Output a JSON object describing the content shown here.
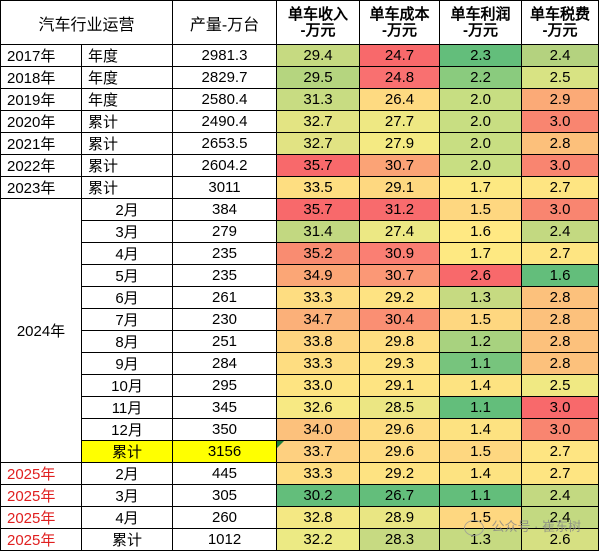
{
  "headers": {
    "c0": "汽车行业运营",
    "c2": "产量-万台",
    "c3": "单车收入\n-万元",
    "c4": "单车成本\n-万元",
    "c5": "单车利润\n-万元",
    "c6": "单车税费\n-万元"
  },
  "rows": [
    {
      "year": "2017年",
      "period": "年度",
      "output": "2981.3",
      "rev": "29.4",
      "cost": "24.7",
      "profit": "2.3",
      "tax": "2.4"
    },
    {
      "year": "2018年",
      "period": "年度",
      "output": "2829.7",
      "rev": "29.5",
      "cost": "24.8",
      "profit": "2.2",
      "tax": "2.5"
    },
    {
      "year": "2019年",
      "period": "年度",
      "output": "2580.4",
      "rev": "31.3",
      "cost": "26.4",
      "profit": "2.0",
      "tax": "2.9"
    },
    {
      "year": "2020年",
      "period": "累计",
      "output": "2490.4",
      "rev": "32.7",
      "cost": "27.7",
      "profit": "2.0",
      "tax": "3.0"
    },
    {
      "year": "2021年",
      "period": "累计",
      "output": "2653.5",
      "rev": "32.7",
      "cost": "27.9",
      "profit": "2.0",
      "tax": "2.8"
    },
    {
      "year": "2022年",
      "period": "累计",
      "output": "2604.2",
      "rev": "35.7",
      "cost": "30.7",
      "profit": "2.0",
      "tax": "3.0"
    },
    {
      "year": "2023年",
      "period": "累计",
      "output": "3011",
      "rev": "33.5",
      "cost": "29.1",
      "profit": "1.7",
      "tax": "2.7"
    },
    {
      "year": "2024年",
      "period": "2月",
      "output": "384",
      "rev": "35.7",
      "cost": "31.2",
      "profit": "1.5",
      "tax": "3.0"
    },
    {
      "year": "",
      "period": "3月",
      "output": "279",
      "rev": "31.4",
      "cost": "27.4",
      "profit": "1.6",
      "tax": "2.4"
    },
    {
      "year": "",
      "period": "4月",
      "output": "235",
      "rev": "35.2",
      "cost": "30.9",
      "profit": "1.7",
      "tax": "2.7"
    },
    {
      "year": "",
      "period": "5月",
      "output": "235",
      "rev": "34.9",
      "cost": "30.7",
      "profit": "2.6",
      "tax": "1.6"
    },
    {
      "year": "",
      "period": "6月",
      "output": "261",
      "rev": "33.3",
      "cost": "29.2",
      "profit": "1.3",
      "tax": "2.8"
    },
    {
      "year": "",
      "period": "7月",
      "output": "230",
      "rev": "34.7",
      "cost": "30.4",
      "profit": "1.5",
      "tax": "2.8"
    },
    {
      "year": "",
      "period": "8月",
      "output": "251",
      "rev": "33.8",
      "cost": "29.8",
      "profit": "1.2",
      "tax": "2.8"
    },
    {
      "year": "",
      "period": "9月",
      "output": "284",
      "rev": "33.3",
      "cost": "29.3",
      "profit": "1.1",
      "tax": "2.8"
    },
    {
      "year": "",
      "period": "10月",
      "output": "295",
      "rev": "33.0",
      "cost": "29.1",
      "profit": "1.4",
      "tax": "2.5"
    },
    {
      "year": "",
      "period": "11月",
      "output": "345",
      "rev": "32.6",
      "cost": "28.5",
      "profit": "1.1",
      "tax": "3.0"
    },
    {
      "year": "",
      "period": "12月",
      "output": "350",
      "rev": "34.0",
      "cost": "29.6",
      "profit": "1.4",
      "tax": "3.0"
    },
    {
      "year": "",
      "period": "累计",
      "output": "3156",
      "rev": "33.7",
      "cost": "29.6",
      "profit": "1.5",
      "tax": "2.7"
    },
    {
      "year": "2025年",
      "period": "2月",
      "output": "445",
      "rev": "33.3",
      "cost": "29.2",
      "profit": "1.4",
      "tax": "2.7"
    },
    {
      "year": "2025年",
      "period": "3月",
      "output": "305",
      "rev": "30.2",
      "cost": "26.7",
      "profit": "1.1",
      "tax": "2.4"
    },
    {
      "year": "2025年",
      "period": "4月",
      "output": "260",
      "rev": "32.8",
      "cost": "28.9",
      "profit": "1.5",
      "tax": "2.4"
    },
    {
      "year": "2025年",
      "period": "累计",
      "output": "1012",
      "rev": "32.2",
      "cost": "28.3",
      "profit": "1.3",
      "tax": "2.6"
    }
  ],
  "colors": {
    "rev": [
      "#c6da81",
      "#b5d57f",
      "#c8dc82",
      "#e3e483",
      "#e1e383",
      "#f8696b",
      "#fede81",
      "#f8696b",
      "#c2d881",
      "#f98c71",
      "#fba676",
      "#fedd81",
      "#fbb079",
      "#fed580",
      "#fedd81",
      "#fee482",
      "#f7e983",
      "#fcc17c",
      "#fed080",
      "#fedd81",
      "#63be7b",
      "#f4e883",
      "#ecea84"
    ],
    "cost": [
      "#f8696b",
      "#f97070",
      "#feda81",
      "#eee883",
      "#f4ea83",
      "#fba376",
      "#fed880",
      "#f86b6d",
      "#ece884",
      "#fa7f73",
      "#fb9876",
      "#fee382",
      "#fa8f73",
      "#fede81",
      "#fee382",
      "#fee482",
      "#ebe683",
      "#fedc81",
      "#fedc81",
      "#fee382",
      "#63be7b",
      "#e9e683",
      "#c7da82"
    ],
    "profit": [
      "#63be7b",
      "#8acb7e",
      "#c7de82",
      "#c8de82",
      "#c8de82",
      "#c8de82",
      "#fde982",
      "#fed780",
      "#ffe983",
      "#fee982",
      "#f8696b",
      "#c6da81",
      "#fed780",
      "#a8d27f",
      "#77c47d",
      "#fde381",
      "#63be7b",
      "#fde281",
      "#fed780",
      "#fde381",
      "#63be7b",
      "#fed780",
      "#c6da81"
    ],
    "tax": [
      "#b4d27f",
      "#d8e383",
      "#fbaa77",
      "#f98570",
      "#fcc07b",
      "#f98570",
      "#fee582",
      "#f98570",
      "#c3d981",
      "#fee582",
      "#63be7b",
      "#fcc17c",
      "#fcc17c",
      "#fcc17c",
      "#fcc17c",
      "#f0e983",
      "#f8696b",
      "#f98570",
      "#fee582",
      "#fee582",
      "#c3d981",
      "#c3d981",
      "#d6e082"
    ]
  },
  "watermark": "公众号 · 崔东树"
}
